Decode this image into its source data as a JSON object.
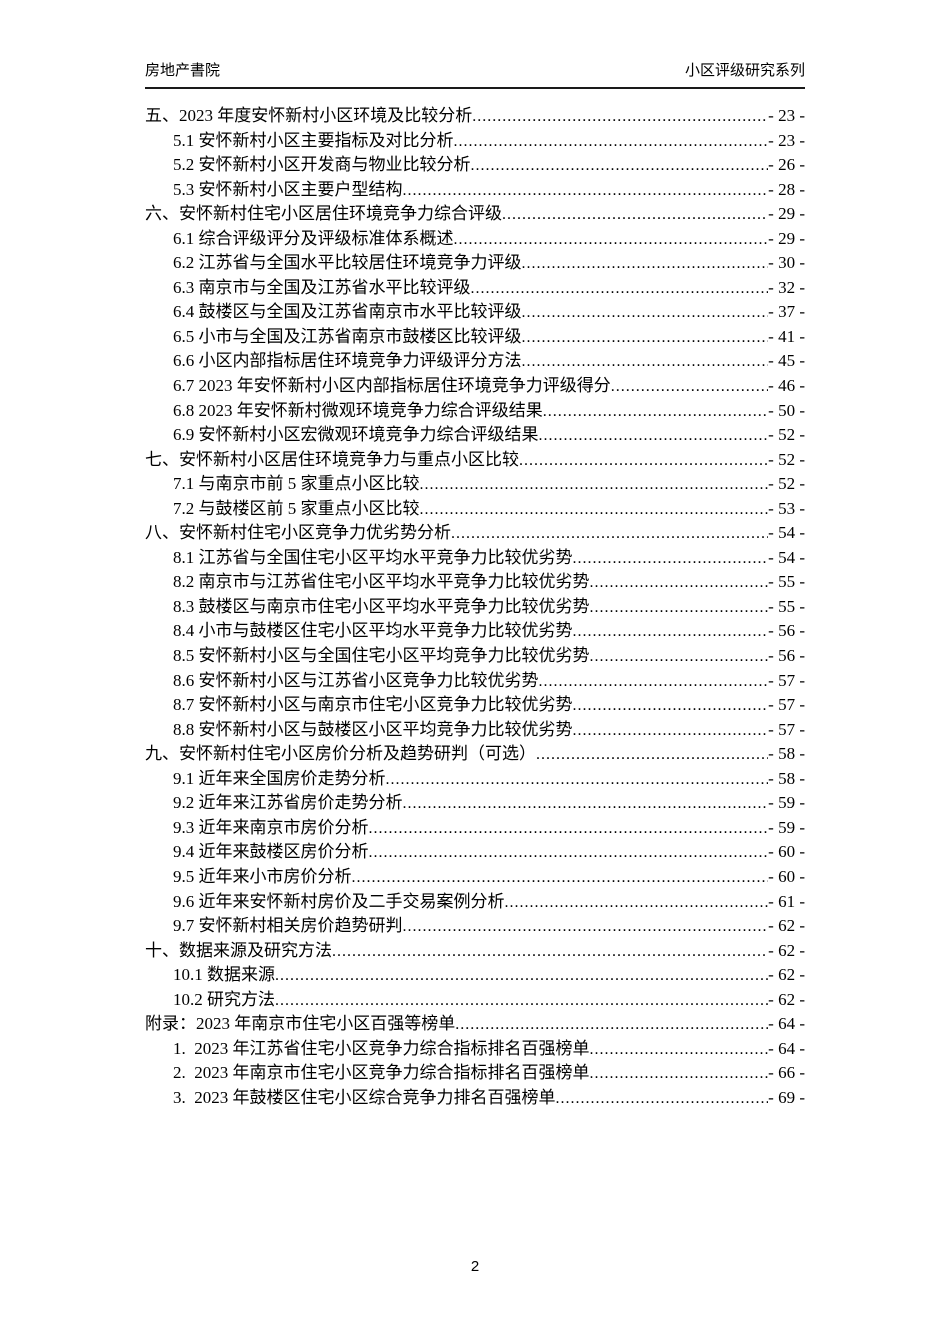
{
  "header": {
    "left": "房地产書院",
    "right": "小区评级研究系列"
  },
  "footer": {
    "page_number": "2"
  },
  "colors": {
    "background": "#ffffff",
    "text": "#000000",
    "header_rule": "#1a1a1a"
  },
  "toc": {
    "leader_char": ".",
    "entries": [
      {
        "level": 1,
        "label": "五、2023 年度安怀新村小区环境及比较分析",
        "page": "- 23 -"
      },
      {
        "level": 2,
        "label": "5.1 安怀新村小区主要指标及对比分析",
        "page": "- 23 -"
      },
      {
        "level": 2,
        "label": "5.2 安怀新村小区开发商与物业比较分析",
        "page": "- 26 -"
      },
      {
        "level": 2,
        "label": "5.3 安怀新村小区主要户型结构",
        "page": "- 28 -"
      },
      {
        "level": 1,
        "label": "六、安怀新村住宅小区居住环境竞争力综合评级",
        "page": "- 29 -"
      },
      {
        "level": 2,
        "label": "6.1 综合评级评分及评级标准体系概述",
        "page": "- 29 -"
      },
      {
        "level": 2,
        "label": "6.2 江苏省与全国水平比较居住环境竞争力评级",
        "page": "- 30 -"
      },
      {
        "level": 2,
        "label": "6.3 南京市与全国及江苏省水平比较评级",
        "page": "- 32 -"
      },
      {
        "level": 2,
        "label": "6.4 鼓楼区与全国及江苏省南京市水平比较评级",
        "page": "- 37 -"
      },
      {
        "level": 2,
        "label": "6.5 小市与全国及江苏省南京市鼓楼区比较评级",
        "page": "- 41 -"
      },
      {
        "level": 2,
        "label": "6.6 小区内部指标居住环境竞争力评级评分方法",
        "page": "- 45 -"
      },
      {
        "level": 2,
        "label": "6.7 2023 年安怀新村小区内部指标居住环境竞争力评级得分",
        "page": "- 46 -"
      },
      {
        "level": 2,
        "label": "6.8 2023 年安怀新村微观环境竞争力综合评级结果",
        "page": "- 50 -"
      },
      {
        "level": 2,
        "label": "6.9 安怀新村小区宏微观环境竞争力综合评级结果",
        "page": "- 52 -"
      },
      {
        "level": 1,
        "label": "七、安怀新村小区居住环境竞争力与重点小区比较",
        "page": "- 52 -"
      },
      {
        "level": 2,
        "label": "7.1 与南京市前 5 家重点小区比较",
        "page": "- 52 -"
      },
      {
        "level": 2,
        "label": "7.2 与鼓楼区前 5 家重点小区比较",
        "page": "- 53 -"
      },
      {
        "level": 1,
        "label": "八、安怀新村住宅小区竞争力优劣势分析",
        "page": "- 54 -"
      },
      {
        "level": 2,
        "label": "8.1 江苏省与全国住宅小区平均水平竞争力比较优劣势",
        "page": "- 54 -"
      },
      {
        "level": 2,
        "label": "8.2 南京市与江苏省住宅小区平均水平竞争力比较优劣势",
        "page": "- 55 -"
      },
      {
        "level": 2,
        "label": "8.3 鼓楼区与南京市住宅小区平均水平竞争力比较优劣势",
        "page": "- 55 -"
      },
      {
        "level": 2,
        "label": "8.4 小市与鼓楼区住宅小区平均水平竞争力比较优劣势",
        "page": "- 56 -"
      },
      {
        "level": 2,
        "label": "8.5 安怀新村小区与全国住宅小区平均竞争力比较优劣势",
        "page": "- 56 -"
      },
      {
        "level": 2,
        "label": "8.6 安怀新村小区与江苏省小区竞争力比较优劣势",
        "page": "- 57 -"
      },
      {
        "level": 2,
        "label": "8.7 安怀新村小区与南京市住宅小区竞争力比较优劣势",
        "page": "- 57 -"
      },
      {
        "level": 2,
        "label": "8.8 安怀新村小区与鼓楼区小区平均竞争力比较优劣势",
        "page": "- 57 -"
      },
      {
        "level": 1,
        "label": "九、安怀新村住宅小区房价分析及趋势研判（可选）",
        "page": "- 58 -"
      },
      {
        "level": 2,
        "label": "9.1 近年来全国房价走势分析",
        "page": "- 58 -"
      },
      {
        "level": 2,
        "label": "9.2 近年来江苏省房价走势分析",
        "page": "- 59 -"
      },
      {
        "level": 2,
        "label": "9.3 近年来南京市房价分析",
        "page": "- 59 -"
      },
      {
        "level": 2,
        "label": "9.4 近年来鼓楼区房价分析",
        "page": "- 60 -"
      },
      {
        "level": 2,
        "label": "9.5 近年来小市房价分析",
        "page": "- 60 -"
      },
      {
        "level": 2,
        "label": "9.6 近年来安怀新村房价及二手交易案例分析",
        "page": "- 61 -"
      },
      {
        "level": 2,
        "label": "9.7 安怀新村相关房价趋势研判",
        "page": "- 62 -"
      },
      {
        "level": 1,
        "label": "十、数据来源及研究方法",
        "page": "- 62 -"
      },
      {
        "level": 2,
        "label": "10.1 数据来源",
        "page": "- 62 -"
      },
      {
        "level": 2,
        "label": "10.2 研究方法",
        "page": "- 62 -"
      },
      {
        "level": 1,
        "label": "附录：2023 年南京市住宅小区百强等榜单",
        "page": "- 64 -"
      },
      {
        "level": 2,
        "label": "1.  2023 年江苏省住宅小区竞争力综合指标排名百强榜单",
        "page": "- 64 -"
      },
      {
        "level": 2,
        "label": "2.  2023 年南京市住宅小区竞争力综合指标排名百强榜单",
        "page": "- 66 -"
      },
      {
        "level": 2,
        "label": "3.  2023 年鼓楼区住宅小区综合竞争力排名百强榜单",
        "page": "- 69 -"
      }
    ]
  }
}
